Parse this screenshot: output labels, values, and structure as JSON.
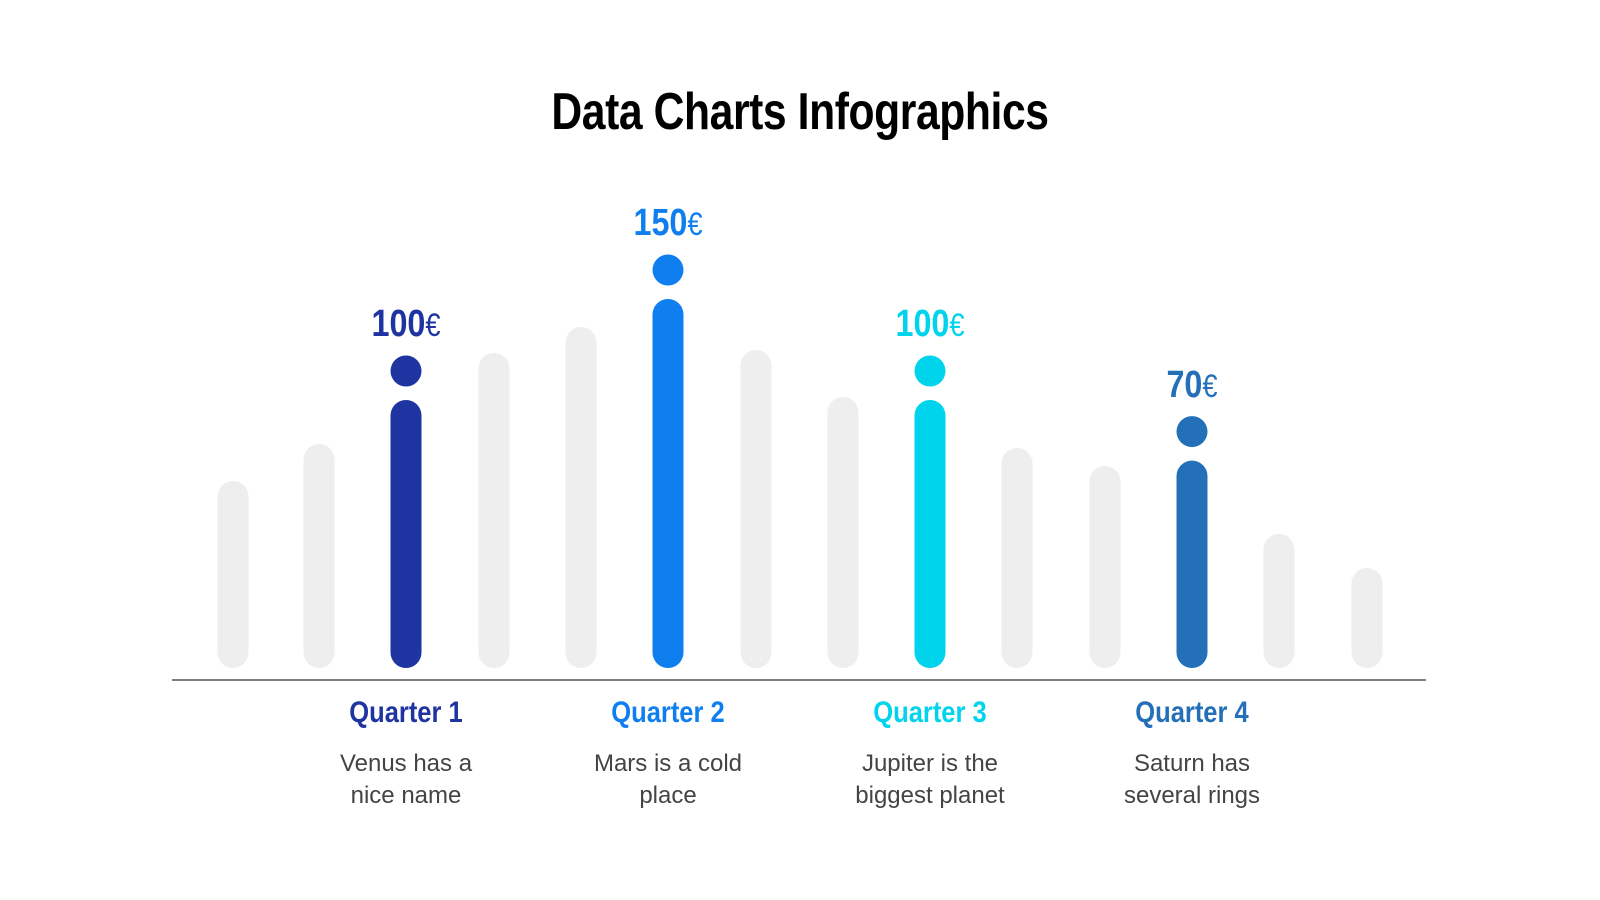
{
  "title": "Data Charts Infographics",
  "chart_data": {
    "type": "bar",
    "title": "Data Charts Infographics",
    "categories": [
      "Quarter 1",
      "Quarter 2",
      "Quarter 3",
      "Quarter 4"
    ],
    "values": [
      100,
      150,
      100,
      70
    ],
    "value_labels": [
      "100",
      "150",
      "100",
      "70"
    ],
    "currency": "€",
    "descriptions": [
      "Venus has a nice name",
      "Mars is a cold place",
      "Jupiter is the biggest planet",
      "Saturn has several rings"
    ],
    "desc_lines": [
      [
        "Venus has a",
        "nice name"
      ],
      [
        "Mars is a cold",
        "place"
      ],
      [
        "Jupiter is the",
        "biggest planet"
      ],
      [
        "Saturn has",
        "several rings"
      ]
    ],
    "colors": [
      "#1e34a0",
      "#0f7ff0",
      "#00d4ec",
      "#2470b8"
    ],
    "background_bar_color": "#eeeeee",
    "grid": false
  }
}
